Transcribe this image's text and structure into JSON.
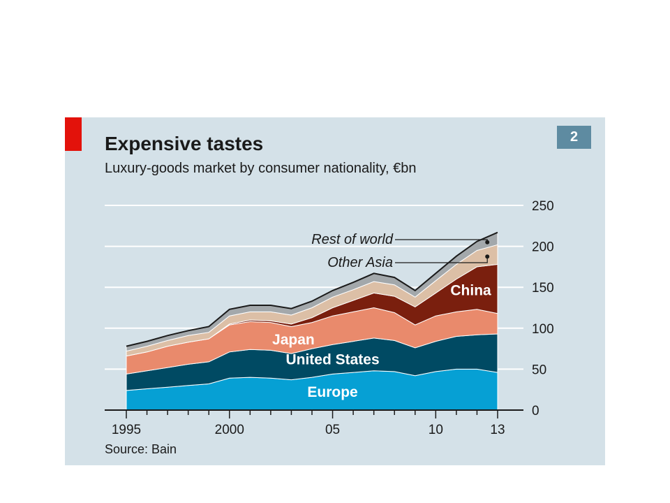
{
  "chart_number": "2",
  "source": "Source: Bain",
  "colors": {
    "Europe": "#06a0d4",
    "United States": "#004a63",
    "Japan": "#e98a6c",
    "China": "#7a1f0e",
    "Other Asia": "#dcbfa6",
    "Rest of world": "#a3a8ab",
    "accent_red": "#e3120b",
    "background": "#d4e1e8",
    "gridline": "#ffffff"
  },
  "chart_data": {
    "type": "area",
    "stacked": true,
    "title": "Expensive tastes",
    "subtitle": "Luxury-goods market by consumer nationality, €bn",
    "x": [
      1995,
      1996,
      1997,
      1998,
      1999,
      2000,
      2001,
      2002,
      2003,
      2004,
      2005,
      2006,
      2007,
      2008,
      2009,
      2010,
      2011,
      2012,
      2013
    ],
    "x_tick_values": [
      1995,
      2000,
      2005,
      2010,
      2013
    ],
    "x_tick_labels": [
      "1995",
      "2000",
      "05",
      "10",
      "13"
    ],
    "ylim": [
      0,
      250
    ],
    "y_ticks": [
      0,
      50,
      100,
      150,
      200,
      250
    ],
    "y_axis_side": "right",
    "grid": true,
    "series": [
      {
        "name": "Europe",
        "values": [
          24,
          26,
          28,
          30,
          32,
          39,
          40,
          39,
          37,
          40,
          44,
          46,
          48,
          47,
          42,
          47,
          50,
          50,
          46
        ]
      },
      {
        "name": "United States",
        "values": [
          20,
          22,
          24,
          26,
          27,
          32,
          34,
          34,
          32,
          35,
          36,
          38,
          40,
          38,
          34,
          37,
          40,
          42,
          47
        ]
      },
      {
        "name": "Japan",
        "values": [
          22,
          23,
          26,
          27,
          28,
          33,
          34,
          34,
          33,
          32,
          35,
          36,
          37,
          34,
          28,
          31,
          30,
          31,
          25
        ]
      },
      {
        "name": "China",
        "values": [
          0,
          0,
          0,
          0,
          0,
          1,
          2,
          2,
          3,
          6,
          10,
          14,
          18,
          20,
          22,
          28,
          40,
          52,
          60
        ]
      },
      {
        "name": "Other Asia",
        "values": [
          6,
          7,
          7,
          8,
          8,
          10,
          10,
          11,
          11,
          12,
          13,
          13,
          14,
          14,
          12,
          15,
          18,
          20,
          24
        ]
      },
      {
        "name": "Rest of world",
        "values": [
          6,
          6,
          6,
          6,
          7,
          8,
          8,
          8,
          8,
          8,
          8,
          9,
          10,
          9,
          8,
          9,
          10,
          11,
          15
        ]
      }
    ],
    "annotations": [
      {
        "text": "Rest of world",
        "series": "Rest of world"
      },
      {
        "text": "Other Asia",
        "series": "Other Asia"
      }
    ]
  }
}
